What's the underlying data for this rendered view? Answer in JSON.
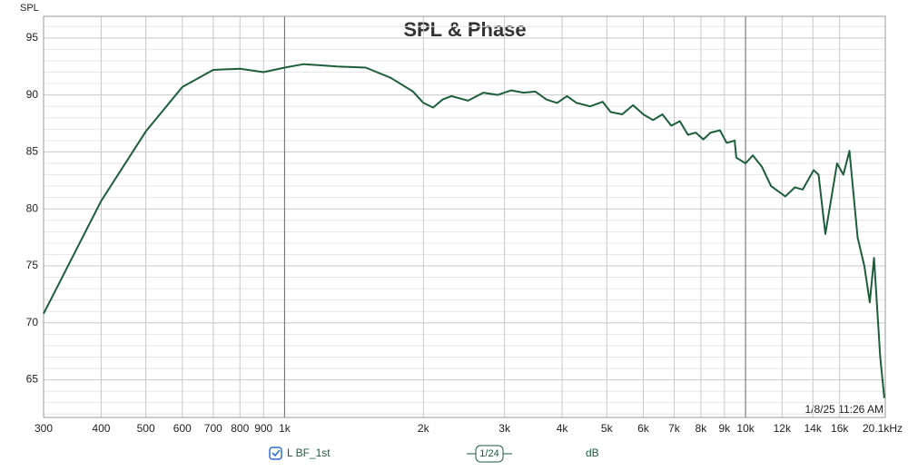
{
  "chart_data": {
    "type": "line",
    "title": "SPL & Phase",
    "y_label": "SPL",
    "timestamp": "1/8/25 11:26 AM",
    "smoothing": "1/24",
    "unit": "dB",
    "x_scale": "log",
    "xlim": [
      300,
      20100
    ],
    "ylim": [
      61.7,
      96.9
    ],
    "xticks": [
      300,
      400,
      500,
      600,
      700,
      800,
      900,
      {
        "value": 1000,
        "label": "1k"
      },
      {
        "value": 2000,
        "label": "2k"
      },
      {
        "value": 3000,
        "label": "3k"
      },
      {
        "value": 4000,
        "label": "4k"
      },
      {
        "value": 5000,
        "label": "5k"
      },
      {
        "value": 6000,
        "label": "6k"
      },
      {
        "value": 7000,
        "label": "7k"
      },
      {
        "value": 8000,
        "label": "8k"
      },
      {
        "value": 9000,
        "label": "9k"
      },
      {
        "value": 10000,
        "label": "10k"
      },
      {
        "value": 12000,
        "label": "12k"
      },
      {
        "value": 14000,
        "label": "14k"
      },
      {
        "value": 16000,
        "label": "16k"
      },
      {
        "value": 20100,
        "label": "20.1kHz"
      }
    ],
    "strong_xticks": [
      1000,
      10000
    ],
    "yticks": [
      65,
      70,
      75,
      80,
      85,
      90,
      95
    ],
    "minor_yticks": [
      62,
      63,
      64,
      66,
      67,
      68,
      69,
      71,
      72,
      73,
      74,
      76,
      77,
      78,
      79,
      81,
      82,
      83,
      84,
      86,
      87,
      88,
      89,
      91,
      92,
      93,
      94,
      96
    ],
    "grid": true,
    "series": [
      {
        "name": "L BF_1st",
        "color": "#1d5e3b",
        "x": [
          300,
          400,
          500,
          600,
          700,
          800,
          900,
          1000,
          1100,
          1200,
          1300,
          1500,
          1700,
          1900,
          2000,
          2100,
          2200,
          2300,
          2500,
          2700,
          2900,
          3100,
          3300,
          3500,
          3700,
          3900,
          4100,
          4300,
          4600,
          4900,
          5100,
          5400,
          5700,
          6000,
          6300,
          6600,
          6900,
          7200,
          7500,
          7800,
          8100,
          8400,
          8800,
          9100,
          9470,
          9550,
          10000,
          10370,
          10850,
          11360,
          12200,
          12800,
          13300,
          14050,
          14400,
          14900,
          15800,
          16300,
          16800,
          17500,
          18100,
          18600,
          19000,
          19600,
          20000
        ],
        "values": [
          70.8,
          80.7,
          86.8,
          90.7,
          92.2,
          92.3,
          92.0,
          92.4,
          92.7,
          92.6,
          92.5,
          92.4,
          91.5,
          90.3,
          89.3,
          88.9,
          89.6,
          89.9,
          89.5,
          90.2,
          90.0,
          90.4,
          90.2,
          90.3,
          89.6,
          89.3,
          89.9,
          89.3,
          89.0,
          89.4,
          88.5,
          88.3,
          89.1,
          88.3,
          87.8,
          88.3,
          87.3,
          87.7,
          86.5,
          86.7,
          86.1,
          86.7,
          86.9,
          85.8,
          86.0,
          84.5,
          84.0,
          84.7,
          83.7,
          82.0,
          81.1,
          81.9,
          81.7,
          83.4,
          83.0,
          77.8,
          84.0,
          83.0,
          85.1,
          77.5,
          75.0,
          71.8,
          75.7,
          67.0,
          63.4
        ]
      }
    ]
  }
}
